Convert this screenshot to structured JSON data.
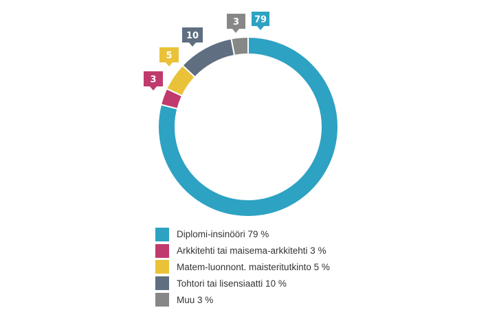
{
  "chart_data": {
    "type": "donut",
    "title": "",
    "series": [
      {
        "name": "Diplomi-insinööri 79 %",
        "value": 79,
        "data_label": "79",
        "color": "#2da2c2"
      },
      {
        "name": "Arkkitehti tai maisema-arkkitehti 3 %",
        "value": 3,
        "data_label": "3",
        "color": "#c03a6d"
      },
      {
        "name": "Matem-luonnont. maisteritutkinto 5 %",
        "value": 5,
        "data_label": "5",
        "color": "#e9c23a"
      },
      {
        "name": "Tohtori tai lisensiaatti 10 %",
        "value": 10,
        "data_label": "10",
        "color": "#5f6e80"
      },
      {
        "name": "Muu 3 %",
        "value": 3,
        "data_label": "3",
        "color": "#878787"
      }
    ],
    "legend_position": "bottom",
    "start_direction": "top",
    "direction": "clockwise"
  }
}
